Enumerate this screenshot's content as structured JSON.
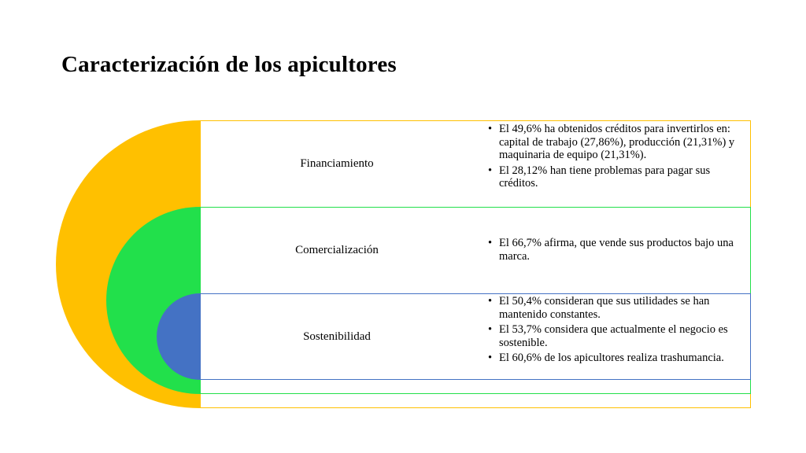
{
  "slide": {
    "title": "Caracterización de los apicultores"
  },
  "colors": {
    "outer": "#FFC000",
    "middle": "#22E04B",
    "inner": "#4472C4",
    "text": "#000000"
  },
  "rows": [
    {
      "label": "Financiamiento",
      "bullets": [
        "El 49,6%  ha obtenidos créditos para invertirlos en: capital de trabajo (27,86%), producción (21,31%) y maquinaria de equipo (21,31%).",
        "El 28,12% han tiene problemas para pagar sus créditos."
      ]
    },
    {
      "label": "Comercialización",
      "bullets": [
        "El 66,7% afirma, que vende sus productos bajo una marca."
      ]
    },
    {
      "label": "Sostenibilidad",
      "bullets": [
        "El 50,4% consideran que sus utilidades se han mantenido constantes.",
        "El 53,7% considera que actualmente el negocio es sostenible.",
        "El 60,6% de los apicultores realiza trashumancia."
      ]
    }
  ]
}
